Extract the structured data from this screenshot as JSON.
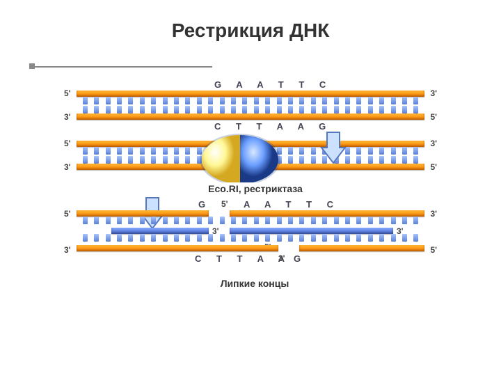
{
  "title": "Рестрикция ДНК",
  "top_seq": "G  A  A  T  T  C",
  "bottom_seq": "C  T  T  A  A  G",
  "caption_enzyme": "Eco.RI, рестриктаза",
  "caption_sticky": "Липкие концы",
  "seq_left_top": "G",
  "seq_right_top": "A  A  T  T  C",
  "seq_left_bot": "C  T  T  A  A",
  "seq_right_bot": "G",
  "end5": "5'",
  "end3": "3'",
  "colors": {
    "backbone_orange_light": "#ffb733",
    "backbone_orange_dark": "#ff7f00",
    "backbone_alt_light": "#88aaff",
    "backbone_alt_dark": "#4466cc",
    "base_blue_light": "#a8c4ff",
    "base_blue_dark": "#5a7fd4",
    "enzyme_yellow": "#fff896",
    "enzyme_yellow_dark": "#e8c840",
    "enzyme_blue": "#6a9eff",
    "enzyme_blue_dark": "#2850a0",
    "arrow_fill": "#cce0ff",
    "arrow_stroke": "#5577bb"
  },
  "teeth_per_full_strand": 30,
  "layout": {
    "diagram_width": 540,
    "strand_gap": 10
  }
}
